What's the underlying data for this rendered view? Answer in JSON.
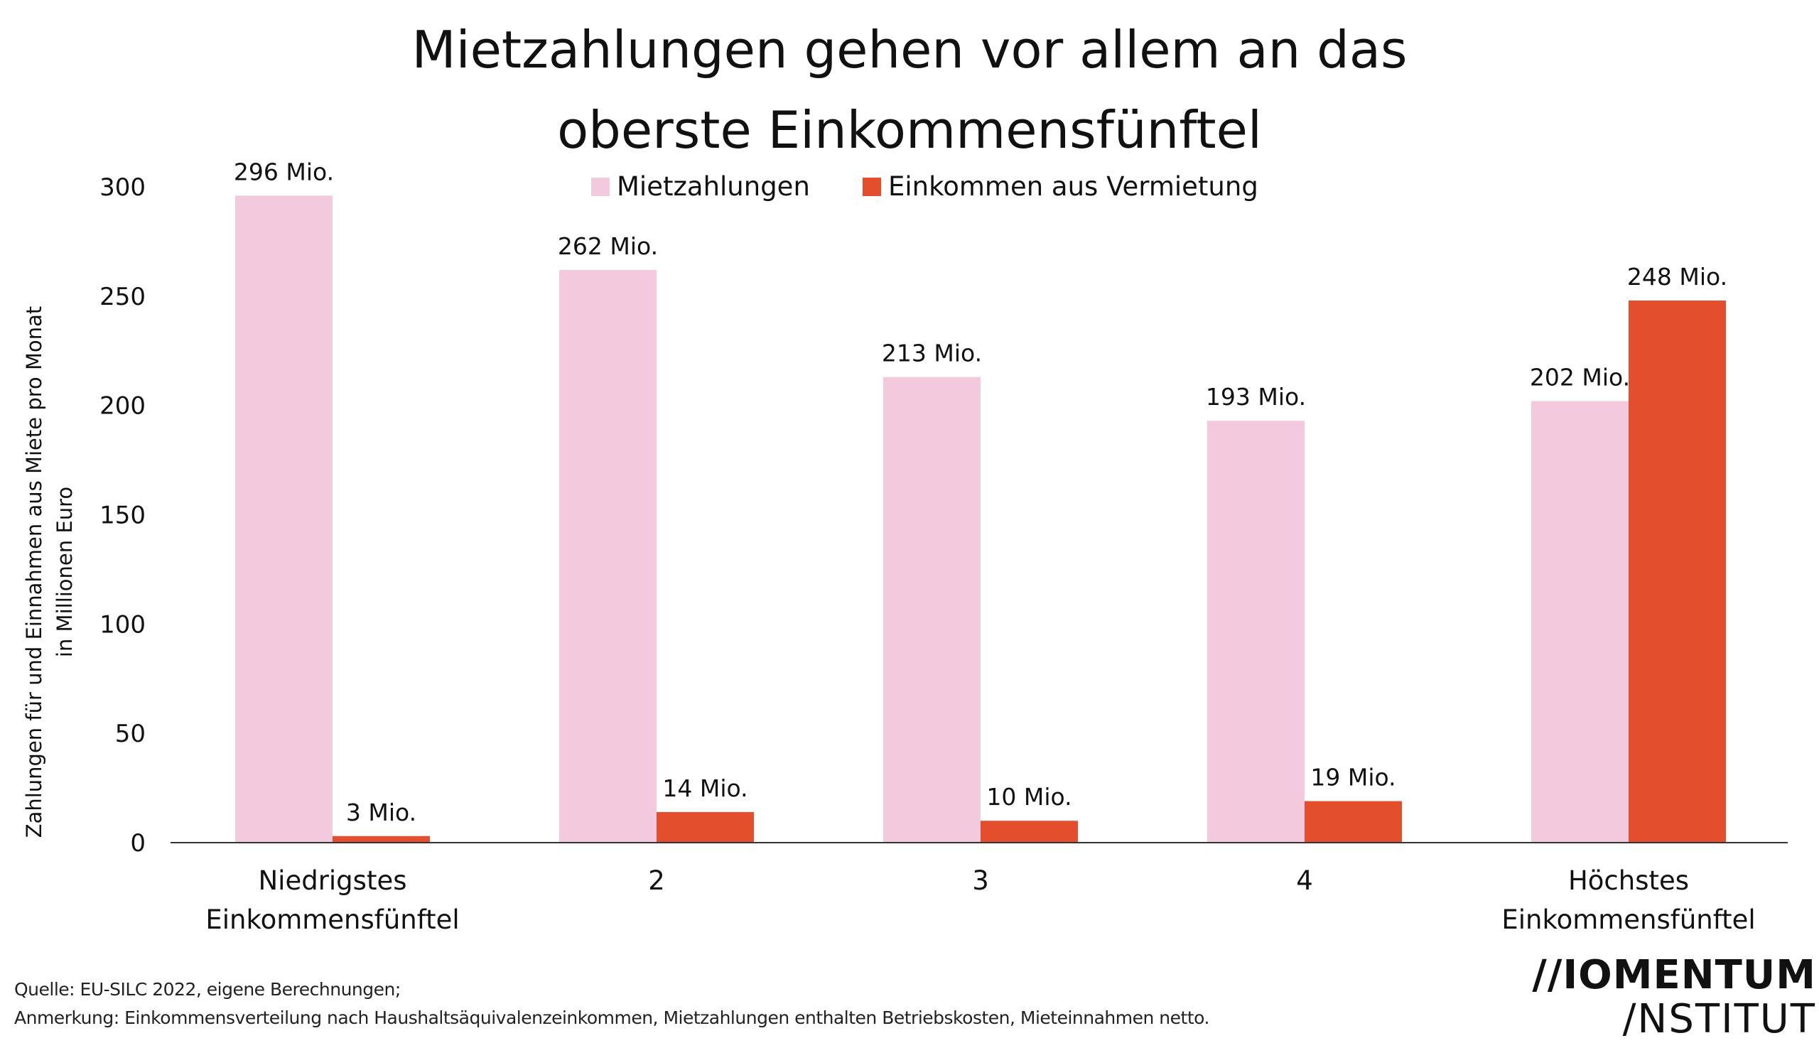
{
  "chart_data": {
    "type": "bar",
    "title_lines": [
      "Mietzahlungen gehen vor allem an das",
      "oberste Einkommensfünftel"
    ],
    "ylabel_lines": [
      "Zahlungen für und Einnahmen aus Miete pro Monat",
      "in Millionen Euro"
    ],
    "xlabel": "",
    "categories": [
      [
        "Niedrigstes",
        "Einkommensfünftel"
      ],
      [
        "2"
      ],
      [
        "3"
      ],
      [
        "4"
      ],
      [
        "Höchstes",
        "Einkommensfünftel"
      ]
    ],
    "ylim": [
      0,
      300
    ],
    "yticks": [
      0,
      50,
      100,
      150,
      200,
      250,
      300
    ],
    "grid": false,
    "legend_position": "top-center",
    "series": [
      {
        "name": "Mietzahlungen",
        "color": "#F2C9DD",
        "values": [
          296,
          262,
          213,
          193,
          202
        ],
        "labels": [
          "296 Mio.",
          "262 Mio.",
          "213 Mio.",
          "193 Mio.",
          "202 Mio."
        ]
      },
      {
        "name": "Einkommen aus Vermietung",
        "color": "#E34E2C",
        "values": [
          3,
          14,
          10,
          19,
          248
        ],
        "labels": [
          "3 Mio.",
          "14 Mio.",
          "10 Mio.",
          "19 Mio.",
          "248 Mio."
        ]
      }
    ]
  },
  "footer": {
    "source": "Quelle: EU-SILC 2022, eigene Berechnungen;",
    "remark": "Anmerkung: Einkommensverteilung nach Haushaltsäquivalenzeinkommen, Mietzahlungen enthalten Betriebskosten, Mieteinnahmen netto."
  },
  "logo": {
    "line1": "//IOMENTUM",
    "line2": "/NSTITUT"
  }
}
